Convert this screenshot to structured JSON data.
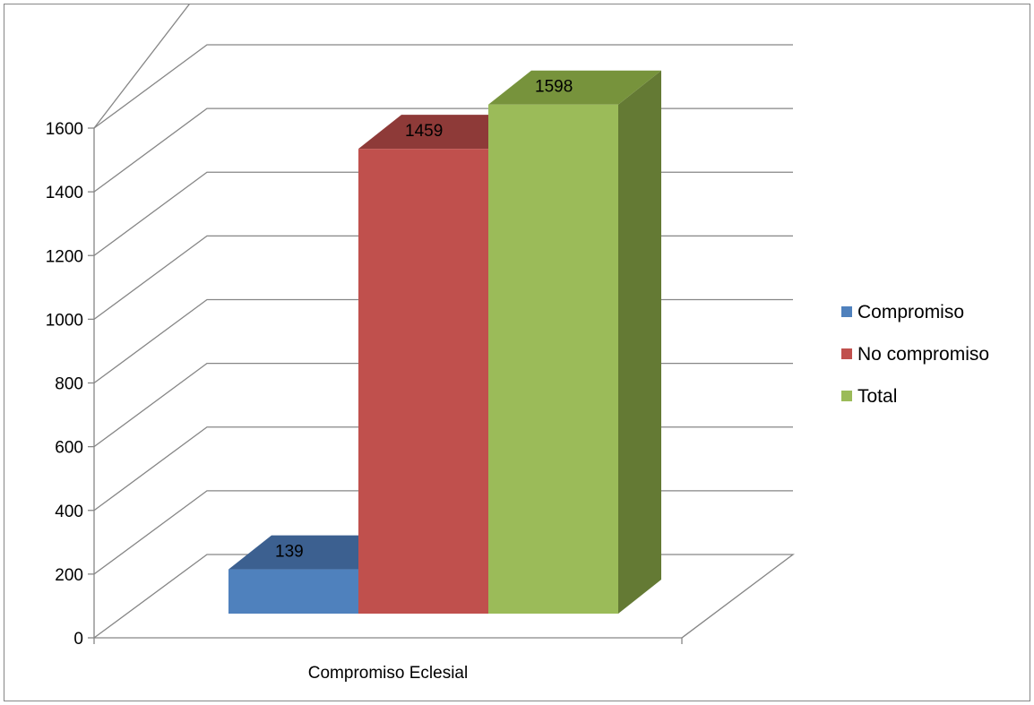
{
  "chart_data": {
    "type": "bar",
    "title": "",
    "xlabel": "",
    "ylabel": "",
    "categories": [
      "Compromiso Eclesial"
    ],
    "series": [
      {
        "name": "Compromiso",
        "values": [
          139
        ],
        "color": "#4F81BD",
        "top_color": "#3C6090",
        "side_color": "#3A5F8C"
      },
      {
        "name": "No compromiso",
        "values": [
          1459
        ],
        "color": "#C0504D",
        "top_color": "#8E3A38",
        "side_color": "#8E3A38"
      },
      {
        "name": "Total",
        "values": [
          1598
        ],
        "color": "#9BBB59",
        "top_color": "#77933C",
        "side_color": "#647A34"
      }
    ],
    "ylim": [
      0,
      1600
    ],
    "yticks": [
      "0",
      "200",
      "400",
      "600",
      "800",
      "1000",
      "1200",
      "1400",
      "1600"
    ],
    "grid": true,
    "legend_position": "right",
    "view": "3d"
  }
}
